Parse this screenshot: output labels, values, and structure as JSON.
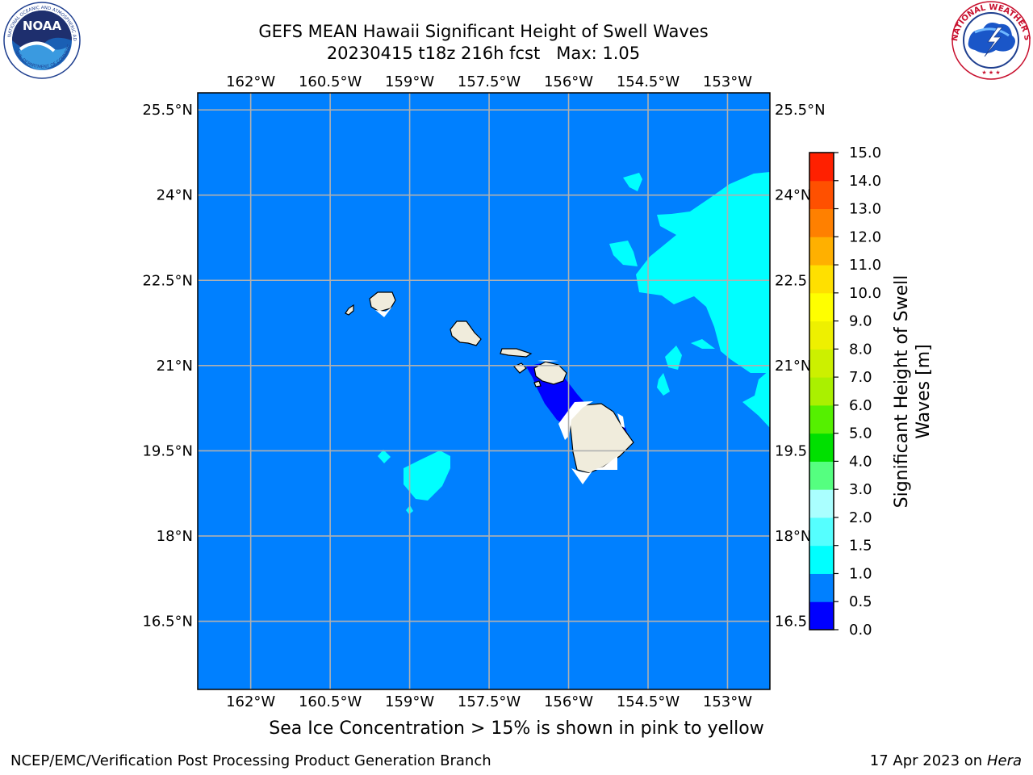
{
  "title": {
    "line1": "GEFS MEAN Hawaii Significant Height of Swell Waves",
    "line2": "20230415 t18z 216h fcst   Max: 1.05"
  },
  "logos": {
    "left": {
      "name": "noaa-logo",
      "text": "NOAA"
    },
    "right": {
      "name": "nws-logo",
      "text": "NATIONAL WEATHER SERVICE"
    }
  },
  "map": {
    "lon_labels": [
      "162°W",
      "160.5°W",
      "159°W",
      "157.5°W",
      "156°W",
      "154.5°W",
      "153°W"
    ],
    "lat_labels": [
      "25.5°N",
      "24°N",
      "22.5°N",
      "21°N",
      "19.5°N",
      "18°N",
      "16.5°N"
    ],
    "lat_labels_right": [
      "25.5°N",
      "24°N",
      "22.5",
      "21°N",
      "19.5",
      "18°N",
      "16.5"
    ],
    "lon_range": [
      -163,
      -152.2
    ],
    "lat_range": [
      15.3,
      25.8
    ],
    "colors": {
      "ocean_0_5_1_0": "#0080ff",
      "band_0_0_5": "#0000ff",
      "band_1_0_1_5": "#00ffff",
      "land": "#f0ecdc",
      "gridline": "#b0b0b0"
    }
  },
  "colorbar": {
    "label_line1": "Significant Height of Swell",
    "label_line2": "Waves [m]",
    "levels": [
      "0.0",
      "0.5",
      "1.0",
      "1.5",
      "2.0",
      "3.0",
      "4.0",
      "5.0",
      "6.0",
      "7.0",
      "8.0",
      "9.0",
      "10.0",
      "11.0",
      "12.0",
      "13.0",
      "14.0",
      "15.0"
    ],
    "colors": [
      "#0000ff",
      "#0080ff",
      "#00ffff",
      "#55ffff",
      "#aaffff",
      "#55ff80",
      "#00e000",
      "#55f000",
      "#aaf000",
      "#ccf000",
      "#eef000",
      "#ffff00",
      "#ffe000",
      "#ffb000",
      "#ff8000",
      "#ff5000",
      "#ff2000",
      "#ff0000"
    ]
  },
  "caption": "Sea Ice Concentration > 15% is shown in pink to yellow",
  "footer": {
    "left": "NCEP/EMC/Verification Post Processing Product Generation Branch",
    "right_prefix": "17 Apr 2023 on ",
    "right_host": "Hera"
  }
}
